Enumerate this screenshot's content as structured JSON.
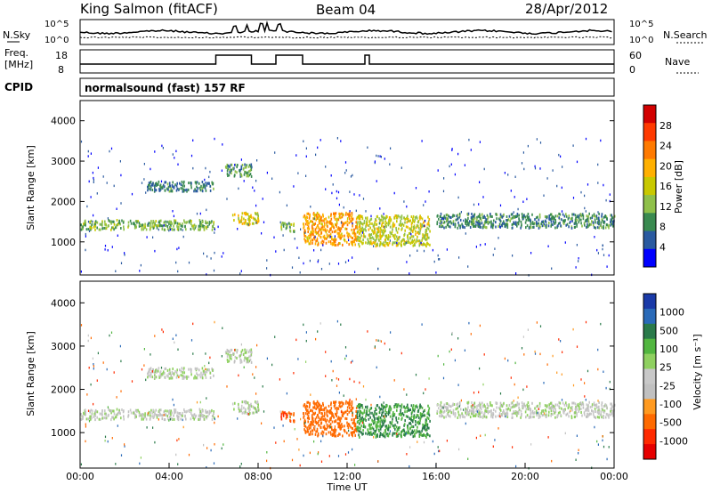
{
  "header": {
    "radar": "King Salmon (fitACF)",
    "beam": "Beam 04",
    "date": "28/Apr/2012"
  },
  "nsky_panel": {
    "left_label": "N.Sky",
    "right_label": "N.Search",
    "left_ticks": [
      "10^5",
      "10^0"
    ],
    "right_ticks": [
      "10^5",
      "10^0"
    ]
  },
  "freq_panel": {
    "left_label_1": "Freq.",
    "left_label_2": "[MHz]",
    "right_label": "Nave",
    "left_ticks": [
      "18",
      "8"
    ],
    "right_ticks": [
      "60",
      "0"
    ],
    "nave_step_intervals_hours": [
      [
        6.1,
        7.7
      ],
      [
        8.8,
        10.0
      ],
      [
        12.8,
        13.0
      ]
    ]
  },
  "cpid_panel": {
    "label": "CPID",
    "text": "normalsound (fast) 157 RF"
  },
  "power_panel": {
    "ylabel": "Slant Range [km]",
    "colorbar_label": "Power [dB]",
    "colorbar_ticks": [
      "28",
      "24",
      "20",
      "16",
      "12",
      "8",
      "4"
    ],
    "colorbar_colors": [
      "#d20000",
      "#ff3a00",
      "#ff7a00",
      "#ffb000",
      "#c8c800",
      "#8fc04a",
      "#3a8a50",
      "#2a5aa0",
      "#0000ff"
    ]
  },
  "velocity_panel": {
    "ylabel": "Slant Range [km]",
    "colorbar_label": "Velocity [m s⁻¹]",
    "colorbar_ticks": [
      "1000",
      "500",
      "100",
      "25",
      "-25",
      "-100",
      "-500",
      "-1000"
    ],
    "colorbar_colors": [
      "#1a3aa8",
      "#2a6ab8",
      "#2a7a4a",
      "#52b640",
      "#8fd060",
      "#c8c8c8",
      "#c0c0c0",
      "#ff9a20",
      "#ff6a00",
      "#ff2a00",
      "#e60000"
    ]
  },
  "x_axis": {
    "label": "Time UT",
    "ticks": [
      "00:00",
      "04:00",
      "08:00",
      "12:00",
      "16:00",
      "20:00",
      "00:00"
    ]
  },
  "chart_data": {
    "type": "heatmap",
    "x_range_hours": [
      0,
      24
    ],
    "y_range_km": [
      180,
      4500
    ],
    "y_ticks": [
      "1000",
      "2000",
      "3000",
      "4000"
    ],
    "echo_regions": [
      {
        "t0": 0.0,
        "t1": 6.0,
        "r_center": 1450,
        "r_halfwidth": 120,
        "power_db": 10,
        "velocity": 0
      },
      {
        "t0": 3.0,
        "t1": 6.0,
        "r_center": 2400,
        "r_halfwidth": 120,
        "power_db": 6,
        "velocity": 0
      },
      {
        "t0": 6.5,
        "t1": 7.7,
        "r_center": 2800,
        "r_halfwidth": 150,
        "power_db": 8,
        "velocity": 0
      },
      {
        "t0": 6.8,
        "t1": 8.0,
        "r_center": 1600,
        "r_halfwidth": 150,
        "power_db": 16,
        "velocity": 0
      },
      {
        "t0": 9.0,
        "t1": 9.6,
        "r_center": 1400,
        "r_halfwidth": 120,
        "power_db": 10,
        "velocity": -400
      },
      {
        "t0": 10.0,
        "t1": 12.4,
        "r_center": 1350,
        "r_halfwidth": 400,
        "power_db": 20,
        "velocity": -350
      },
      {
        "t0": 12.4,
        "t1": 15.7,
        "r_center": 1300,
        "r_halfwidth": 380,
        "power_db": 14,
        "velocity": 150
      },
      {
        "t0": 16.0,
        "t1": 24.0,
        "r_center": 1550,
        "r_halfwidth": 180,
        "power_db": 7,
        "velocity": 0
      }
    ]
  }
}
